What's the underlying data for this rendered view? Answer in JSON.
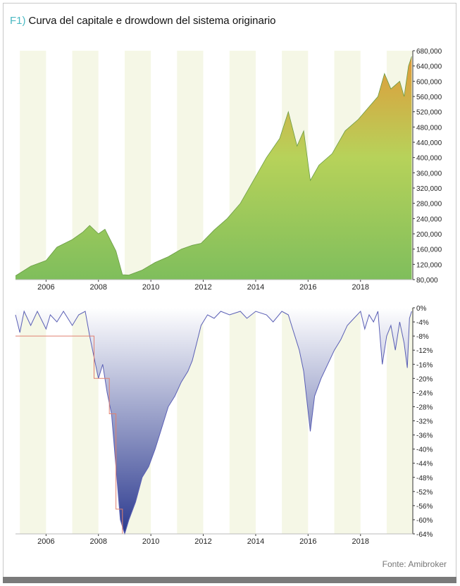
{
  "figure": {
    "id": "F1)",
    "title": "Curva del capitale e drowdown del sistema originario",
    "source": "Fonte: Amibroker"
  },
  "colors": {
    "fig_id": "#4bb9c3",
    "equity_low": "#7fbe5c",
    "equity_high": "#e09a3a",
    "drawdown_top": "#ffffff",
    "drawdown_bottom": "#2c3a8f",
    "drawdown_line": "#5a5fb5",
    "max_drawdown_marker": "#e08070",
    "band_light": "#f5f7e6"
  },
  "chart_data": [
    {
      "type": "area",
      "name": "equity-curve",
      "x_axis": "date",
      "xlim": [
        "2004-11-01",
        "2019-12-31"
      ],
      "ylim": [
        80000,
        680000
      ],
      "y_ticks": [
        "680,000",
        "640,000",
        "600,000",
        "560,000",
        "520,000",
        "480,000",
        "440,000",
        "400,000",
        "360,000",
        "320,000",
        "280,000",
        "240,000",
        "200,000",
        "160,000",
        "120,000",
        "80,000"
      ],
      "x_ticks": [
        "2006",
        "2008",
        "2010",
        "2012",
        "2014",
        "2016",
        "2018"
      ],
      "grid": false,
      "points": [
        [
          "2004-11-01",
          90000
        ],
        [
          "2005-06-01",
          115000
        ],
        [
          "2006-01-01",
          130000
        ],
        [
          "2006-06-01",
          165000
        ],
        [
          "2007-01-01",
          185000
        ],
        [
          "2007-06-01",
          205000
        ],
        [
          "2007-09-01",
          222000
        ],
        [
          "2008-01-01",
          200000
        ],
        [
          "2008-04-01",
          212000
        ],
        [
          "2008-07-01",
          178000
        ],
        [
          "2008-09-01",
          155000
        ],
        [
          "2008-12-01",
          93000
        ],
        [
          "2009-03-01",
          92000
        ],
        [
          "2009-09-01",
          105000
        ],
        [
          "2010-03-01",
          125000
        ],
        [
          "2010-09-01",
          140000
        ],
        [
          "2011-03-01",
          160000
        ],
        [
          "2011-08-01",
          170000
        ],
        [
          "2011-12-01",
          175000
        ],
        [
          "2012-06-01",
          210000
        ],
        [
          "2012-12-01",
          240000
        ],
        [
          "2013-06-01",
          280000
        ],
        [
          "2013-12-01",
          340000
        ],
        [
          "2014-06-01",
          400000
        ],
        [
          "2014-12-01",
          450000
        ],
        [
          "2015-04-01",
          520000
        ],
        [
          "2015-08-01",
          430000
        ],
        [
          "2015-11-01",
          470000
        ],
        [
          "2016-02-01",
          340000
        ],
        [
          "2016-06-01",
          380000
        ],
        [
          "2016-12-01",
          410000
        ],
        [
          "2017-06-01",
          470000
        ],
        [
          "2017-12-01",
          500000
        ],
        [
          "2018-03-01",
          520000
        ],
        [
          "2018-09-01",
          560000
        ],
        [
          "2018-12-01",
          620000
        ],
        [
          "2019-03-01",
          580000
        ],
        [
          "2019-07-01",
          600000
        ],
        [
          "2019-09-01",
          560000
        ],
        [
          "2019-11-01",
          640000
        ],
        [
          "2019-12-15",
          665000
        ]
      ]
    },
    {
      "type": "area",
      "name": "drawdown",
      "x_axis": "date",
      "xlim": [
        "2004-11-01",
        "2019-12-31"
      ],
      "ylim": [
        -64,
        0
      ],
      "y_ticks": [
        "0%",
        "-4%",
        "-8%",
        "-12%",
        "-16%",
        "-20%",
        "-24%",
        "-28%",
        "-32%",
        "-36%",
        "-40%",
        "-44%",
        "-48%",
        "-52%",
        "-56%",
        "-60%",
        "-64%"
      ],
      "x_ticks": [
        "2006",
        "2008",
        "2010",
        "2012",
        "2014",
        "2016",
        "2018"
      ],
      "grid": false,
      "points": [
        [
          "2004-11-01",
          -2
        ],
        [
          "2005-01-01",
          -7
        ],
        [
          "2005-03-01",
          -1
        ],
        [
          "2005-06-01",
          -5
        ],
        [
          "2005-09-01",
          -1
        ],
        [
          "2006-01-01",
          -6
        ],
        [
          "2006-03-01",
          -2
        ],
        [
          "2006-06-01",
          -4
        ],
        [
          "2006-09-01",
          -1
        ],
        [
          "2007-01-01",
          -5
        ],
        [
          "2007-04-01",
          -2
        ],
        [
          "2007-07-01",
          -1
        ],
        [
          "2007-09-01",
          -8
        ],
        [
          "2007-11-01",
          -14
        ],
        [
          "2008-01-01",
          -20
        ],
        [
          "2008-03-01",
          -16
        ],
        [
          "2008-05-01",
          -24
        ],
        [
          "2008-07-01",
          -30
        ],
        [
          "2008-09-01",
          -45
        ],
        [
          "2008-11-01",
          -60
        ],
        [
          "2009-01-01",
          -64
        ],
        [
          "2009-03-01",
          -60
        ],
        [
          "2009-06-01",
          -55
        ],
        [
          "2009-09-01",
          -48
        ],
        [
          "2009-12-01",
          -45
        ],
        [
          "2010-03-01",
          -40
        ],
        [
          "2010-06-01",
          -34
        ],
        [
          "2010-09-01",
          -28
        ],
        [
          "2010-12-01",
          -25
        ],
        [
          "2011-03-01",
          -21
        ],
        [
          "2011-06-01",
          -18
        ],
        [
          "2011-08-01",
          -15
        ],
        [
          "2011-10-01",
          -10
        ],
        [
          "2011-12-01",
          -5
        ],
        [
          "2012-03-01",
          -2
        ],
        [
          "2012-06-01",
          -3
        ],
        [
          "2012-09-01",
          -1
        ],
        [
          "2013-01-01",
          -2
        ],
        [
          "2013-06-01",
          -1
        ],
        [
          "2013-09-01",
          -3
        ],
        [
          "2014-01-01",
          -1
        ],
        [
          "2014-06-01",
          -2
        ],
        [
          "2014-09-01",
          -4
        ],
        [
          "2015-01-01",
          -1
        ],
        [
          "2015-04-01",
          -2
        ],
        [
          "2015-06-01",
          -6
        ],
        [
          "2015-09-01",
          -12
        ],
        [
          "2015-11-01",
          -18
        ],
        [
          "2016-02-01",
          -35
        ],
        [
          "2016-04-01",
          -25
        ],
        [
          "2016-07-01",
          -20
        ],
        [
          "2016-10-01",
          -16
        ],
        [
          "2017-01-01",
          -12
        ],
        [
          "2017-04-01",
          -9
        ],
        [
          "2017-07-01",
          -5
        ],
        [
          "2017-10-01",
          -3
        ],
        [
          "2018-01-01",
          -1
        ],
        [
          "2018-03-01",
          -6
        ],
        [
          "2018-05-01",
          -2
        ],
        [
          "2018-07-01",
          -4
        ],
        [
          "2018-09-01",
          -1
        ],
        [
          "2018-11-01",
          -16
        ],
        [
          "2019-01-01",
          -8
        ],
        [
          "2019-03-01",
          -5
        ],
        [
          "2019-05-01",
          -12
        ],
        [
          "2019-07-01",
          -4
        ],
        [
          "2019-09-01",
          -10
        ],
        [
          "2019-10-15",
          -17
        ],
        [
          "2019-11-15",
          -3
        ],
        [
          "2019-12-15",
          -1
        ]
      ],
      "max_drawdown_step": [
        [
          "2004-11-01",
          -8
        ],
        [
          "2007-11-01",
          -8
        ],
        [
          "2007-11-01",
          -20
        ],
        [
          "2008-06-01",
          -20
        ],
        [
          "2008-06-01",
          -30
        ],
        [
          "2008-09-01",
          -30
        ],
        [
          "2008-09-01",
          -57
        ],
        [
          "2008-12-01",
          -57
        ],
        [
          "2008-12-01",
          -64
        ],
        [
          "2019-12-31",
          -64
        ]
      ]
    }
  ]
}
